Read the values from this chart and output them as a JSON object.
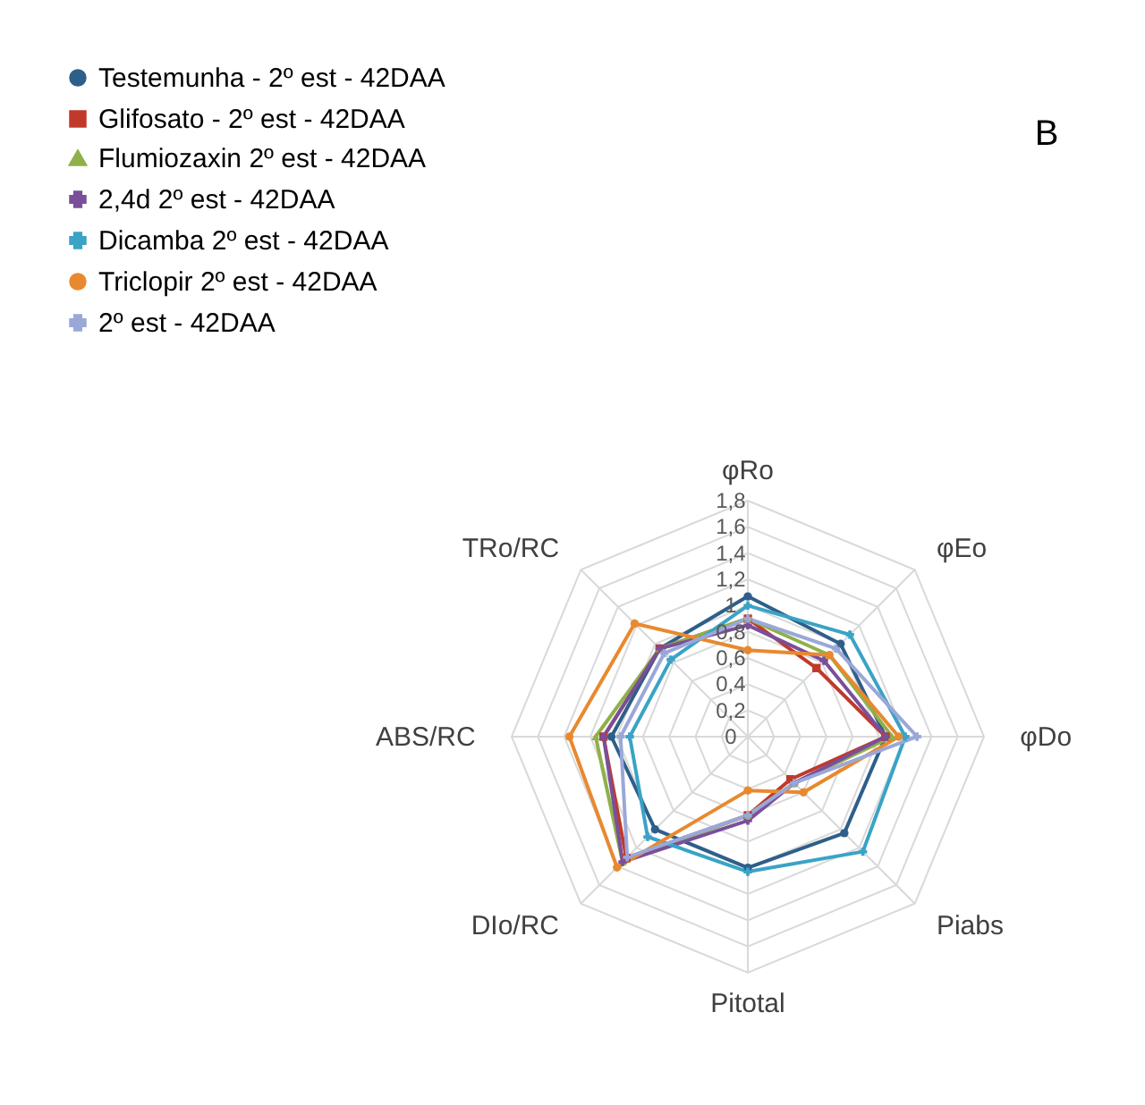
{
  "chart_data": {
    "type": "radar",
    "categories": [
      "φRo",
      "φEo",
      "φDo",
      "Piabs",
      "Pitotal",
      "DIo/RC",
      "ABS/RC",
      "TRo/RC"
    ],
    "ylim": [
      0,
      1.8
    ],
    "yticks": [
      {
        "value": 0,
        "label": "0"
      },
      {
        "value": 0.2,
        "label": "0,2"
      },
      {
        "value": 0.4,
        "label": "0,4"
      },
      {
        "value": 0.6,
        "label": "0,6"
      },
      {
        "value": 0.8,
        "label": "0,8"
      },
      {
        "value": 1,
        "label": "1"
      },
      {
        "value": 1.2,
        "label": "1,2"
      },
      {
        "value": 1.4,
        "label": "1,4"
      },
      {
        "value": 1.6,
        "label": "1,6"
      },
      {
        "value": 1.8,
        "label": "1,8"
      }
    ],
    "grid": true,
    "legend": "top left",
    "annotations": [
      "B"
    ],
    "series": [
      {
        "name": "Testemunha - 2º est - 42DAA",
        "color": "#2e5f8a",
        "marker": "circle",
        "values": [
          1.07,
          1,
          1.05,
          1.04,
          1,
          1,
          1.04,
          0.95
        ]
      },
      {
        "name": "Glifosato - 2º est - 42DAA",
        "color": "#c0392b",
        "marker": "square",
        "values": [
          0.9,
          0.74,
          1.05,
          0.46,
          0.6,
          1.31,
          1.1,
          0.95
        ]
      },
      {
        "name": "Flumiozaxin 2º est - 42DAA",
        "color": "#8fb04a",
        "marker": "triangle",
        "values": [
          0.9,
          0.88,
          1.1,
          0.5,
          0.6,
          1.35,
          1.16,
          0.95
        ]
      },
      {
        "name": "2,4d 2º est - 42DAA",
        "color": "#7a4f9a",
        "marker": "cross",
        "values": [
          0.85,
          0.82,
          1.05,
          0.5,
          0.64,
          1.35,
          1.1,
          0.95
        ]
      },
      {
        "name": "Dicamba 2º est - 42DAA",
        "color": "#3aa3c6",
        "marker": "cross",
        "values": [
          1,
          1.1,
          1.2,
          1.24,
          1.03,
          1.08,
          0.9,
          0.83
        ]
      },
      {
        "name": "Triclopir 2º est - 42DAA",
        "color": "#e8892f",
        "marker": "circle",
        "values": [
          0.66,
          0.88,
          1.15,
          0.6,
          0.41,
          1.41,
          1.36,
          1.22
        ]
      },
      {
        "name": "2º est - 42DAA",
        "color": "#9aa8d8",
        "marker": "cross",
        "values": [
          0.9,
          0.95,
          1.29,
          0.5,
          0.6,
          1.3,
          0.97,
          0.9
        ]
      }
    ]
  }
}
